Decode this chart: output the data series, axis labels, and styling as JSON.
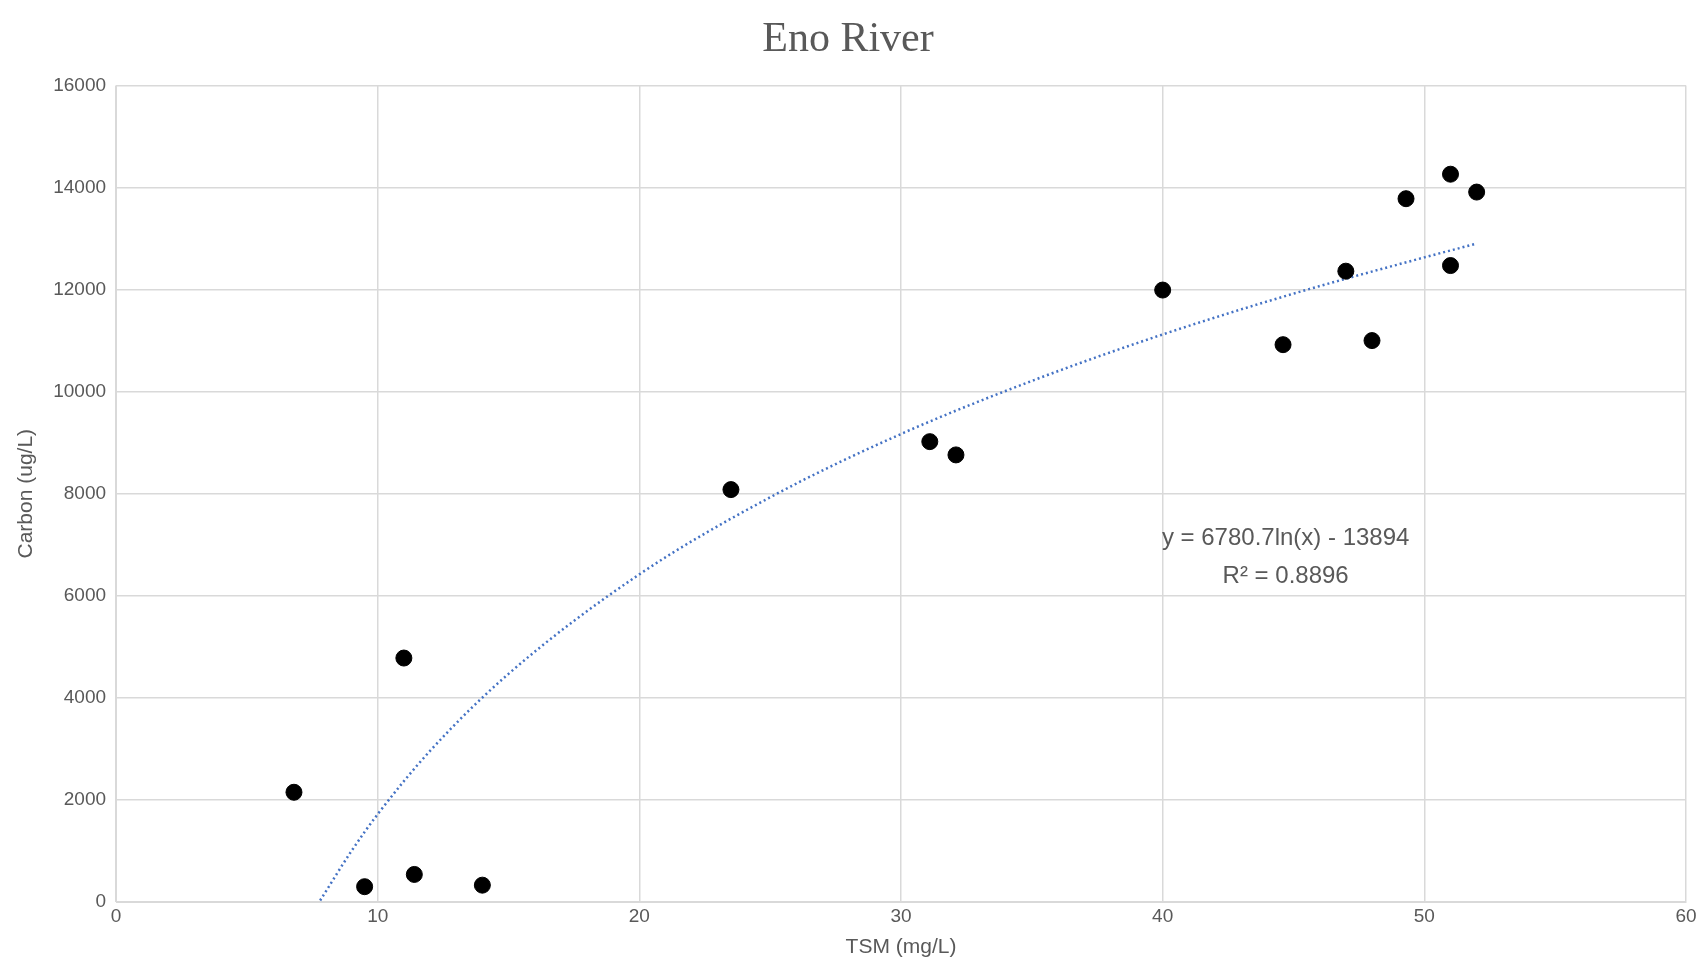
{
  "chart_data": {
    "type": "scatter",
    "title": "Eno River",
    "xlabel": "TSM (mg/L)",
    "ylabel": "Carbon (ug/L)",
    "series": [
      {
        "type": "scatter",
        "color": "#000000",
        "marker": "circle",
        "x": [
          6.8,
          9.5,
          11.0,
          11.4,
          14.0,
          23.5,
          31.1,
          32.1,
          40.0,
          44.6,
          47.0,
          48.0,
          49.3,
          51.0,
          51.0,
          52.0
        ],
        "values": [
          2150,
          300,
          4780,
          540,
          330,
          8080,
          9020,
          8760,
          11990,
          10920,
          12360,
          11000,
          13780,
          14260,
          12470,
          13910
        ]
      },
      {
        "type": "line",
        "color": "#4472c4",
        "line_style": "dotted",
        "marker": "none",
        "x": [
          7.8,
          9,
          10,
          12,
          15,
          20,
          25,
          30,
          35,
          40,
          45,
          50,
          52
        ],
        "values": [
          30,
          1000,
          1720,
          2960,
          4470,
          6420,
          7930,
          9170,
          10210,
          11120,
          11920,
          12630,
          12900
        ]
      }
    ],
    "xlim": [
      0,
      60
    ],
    "xticks": [
      0,
      10,
      20,
      30,
      40,
      50,
      60
    ],
    "ylim": [
      0,
      16000
    ],
    "yticks": [
      0,
      2000,
      4000,
      6000,
      8000,
      10000,
      12000,
      14000,
      16000
    ],
    "grid": true,
    "legend": false,
    "annotations": [
      "y = 6780.7ln(x) - 13894",
      "R² = 0.8896"
    ]
  }
}
